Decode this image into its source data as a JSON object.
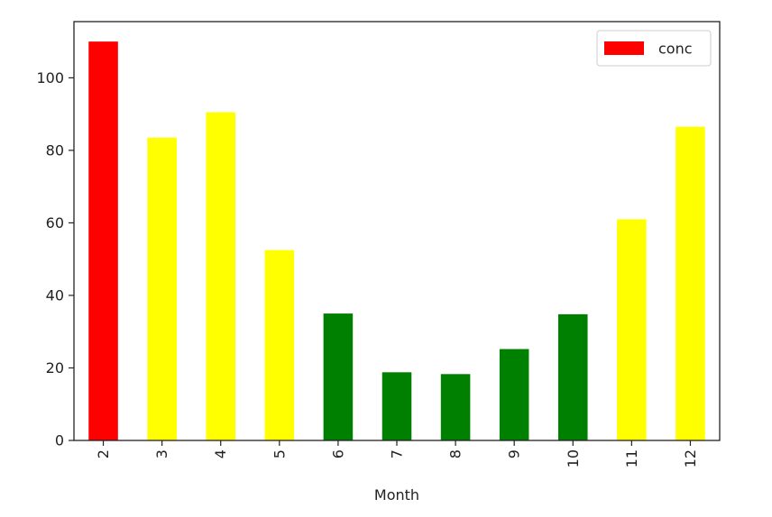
{
  "chart_data": {
    "type": "bar",
    "title": "",
    "xlabel": "Month",
    "ylabel": "",
    "categories": [
      "2",
      "3",
      "4",
      "5",
      "6",
      "7",
      "8",
      "9",
      "10",
      "11",
      "12"
    ],
    "values": [
      110,
      83.5,
      90.5,
      52.5,
      35,
      18.8,
      18.3,
      25.2,
      34.8,
      61,
      86.5
    ],
    "bar_colors": [
      "#ff0000",
      "#ffff00",
      "#ffff00",
      "#ffff00",
      "#008000",
      "#008000",
      "#008000",
      "#008000",
      "#008000",
      "#ffff00",
      "#ffff00"
    ],
    "ylim": [
      0,
      115.5
    ],
    "yticks": [
      0,
      20,
      40,
      60,
      80,
      100
    ],
    "grid": false,
    "legend": {
      "placement": "top-right",
      "entries": [
        {
          "name": "conc",
          "color": "#ff0000"
        }
      ]
    }
  }
}
